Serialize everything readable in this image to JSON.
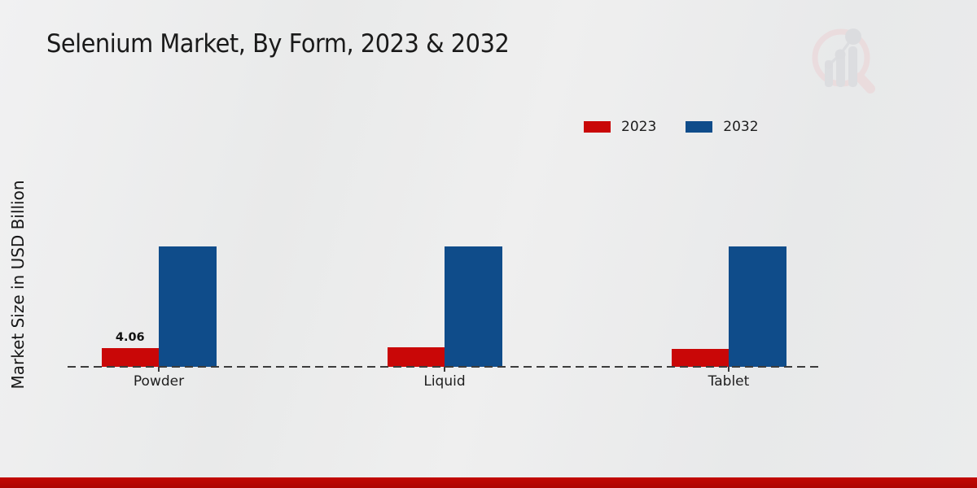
{
  "title": "Selenium Market, By Form, 2023 & 2032",
  "legend": [
    {
      "label": "2023",
      "color": "#c90707"
    },
    {
      "label": "2032",
      "color": "#0f4c8a"
    }
  ],
  "chart_data": {
    "type": "bar",
    "title": "Selenium Market, By Form, 2023 & 2032",
    "categories": [
      "Powder",
      "Liquid",
      "Tablet"
    ],
    "series": [
      {
        "name": "2023",
        "color": "#c90707",
        "values": [
          4.06,
          4.2,
          3.85
        ]
      },
      {
        "name": "2032",
        "color": "#0f4c8a",
        "values": [
          26.4,
          26.4,
          26.4
        ]
      }
    ],
    "value_labels": [
      {
        "series": "2023",
        "category": "Powder",
        "text": "4.06"
      }
    ],
    "xlabel": "",
    "ylabel": "Market Size in USD Billion",
    "ylim": [
      0,
      30
    ],
    "grid": false,
    "axis_style": "dashed-baseline-only",
    "legend_position": "top-right"
  },
  "watermark": {
    "name": "market-research-logo",
    "ring_color": "#ecd2d4",
    "bars_color": "#d4d5d9"
  },
  "footer": {
    "bar_color": "#bb0602"
  }
}
